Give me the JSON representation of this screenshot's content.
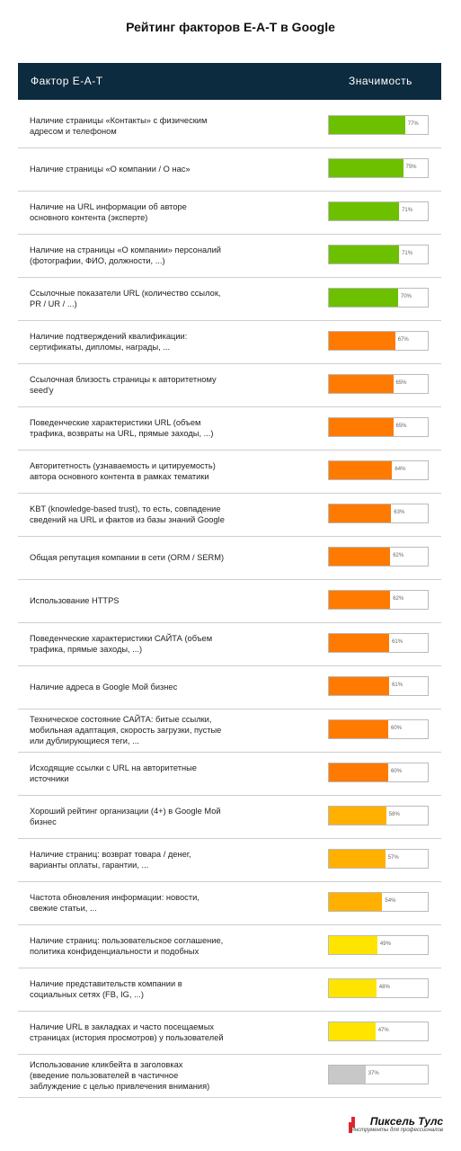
{
  "chart_data": {
    "type": "bar",
    "orientation": "horizontal",
    "title": "Рейтинг факторов E-A-T в Google",
    "column_headers": [
      "Фактор E-A-T",
      "Значимость"
    ],
    "categories": [
      "Наличие страницы «Контакты» с физическим\nадресом и телефоном",
      "Наличие страницы «О компании / О нас»",
      "Наличие на URL информации об авторе\nосновного контента (эксперте)",
      "Наличие на страницы «О компании» персоналий\n(фотографии, ФИО, должности, ...)",
      "Ссылочные показатели URL (количество ссылок,\nPR / UR / ...)",
      "Наличие подтверждений квалификации:\nсертификаты, дипломы, награды, ...",
      "Ссылочная близость страницы к авторитетному\nseed'у",
      "Поведенческие характеристики URL (объем\nтрафика, возвраты на URL, прямые заходы, ...)",
      "Авторитетность (узнаваемость и цитируемость)\nавтора основного контента в рамках тематики",
      "KBT (knowledge-based trust), то есть, совпадение\nсведений на URL и фактов из базы знаний Google",
      "Общая репутация компании в сети (ORM / SERM)",
      "Использование HTTPS",
      "Поведенческие характеристики САЙТА (объем\nтрафика, прямые заходы, ...)",
      "Наличие адреса в Google Мой бизнес",
      "Техническое состояние САЙТА: битые ссылки,\nмобильная адаптация, скорость загрузки, пустые\nили дублирующиеся теги, ...",
      "Исходящие ссылки с URL на авторитетные\nисточники",
      "Хороший рейтинг организации (4+) в Google Мой\nбизнес",
      "Наличие страниц: возврат товара / денег,\nварианты оплаты, гарантии, ...",
      "Частота обновления информации: новости,\nсвежие статьи, ...",
      "Наличие страниц: пользовательское соглашение,\nполитика конфиденциальности и подобных",
      "Наличие представительств компании в\nсоциальных сетях (FB, IG, ...)",
      "Наличие URL в закладках и часто посещаемых\nстраницах (история просмотров) у пользователей",
      "Использование кликбейта в заголовках\n(введение пользователей в частичное\nзаблуждение с целью привлечения внимания)"
    ],
    "values": [
      77,
      75,
      71,
      71,
      70,
      67,
      65,
      65,
      64,
      63,
      62,
      62,
      61,
      61,
      60,
      60,
      58,
      57,
      54,
      49,
      48,
      47,
      37
    ],
    "value_labels": [
      "77%",
      "75%",
      "71%",
      "71%",
      "70%",
      "67%",
      "65%",
      "65%",
      "64%",
      "63%",
      "62%",
      "62%",
      "61%",
      "61%",
      "60%",
      "60%",
      "58%",
      "57%",
      "54%",
      "49%",
      "48%",
      "47%",
      "37%"
    ],
    "colors": [
      "#6cc000",
      "#6cc000",
      "#6cc000",
      "#6cc000",
      "#6cc000",
      "#ff7a00",
      "#ff7a00",
      "#ff7a00",
      "#ff7a00",
      "#ff7a00",
      "#ff7a00",
      "#ff7a00",
      "#ff7a00",
      "#ff7a00",
      "#ff7a00",
      "#ff7a00",
      "#ffb000",
      "#ffb000",
      "#ffb000",
      "#ffe400",
      "#ffe400",
      "#ffe400",
      "#c8c8c8"
    ],
    "xlim": [
      0,
      100
    ],
    "logo": {
      "name": "Пиксель Тулс",
      "tagline": "Инструменты для профессионалов"
    }
  }
}
